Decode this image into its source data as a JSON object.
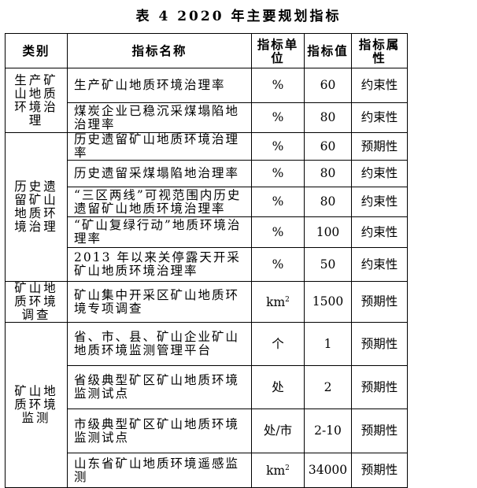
{
  "title": "表 4   2020 年主要规划指标",
  "headers": [
    "类别",
    "指标名称",
    "指标单位",
    "指标值",
    "指标属性"
  ],
  "groups": [
    {
      "category": "生产矿山地质环境治理",
      "rows": [
        {
          "name": "生产矿山地质环境治理率",
          "unit": "%",
          "value": "60",
          "attr": "约束性"
        },
        {
          "name": "煤炭企业已稳沉采煤塌陷地治理率",
          "unit": "%",
          "value": "80",
          "attr": "约束性"
        }
      ]
    },
    {
      "category": "历史遗留矿山地质环境治理",
      "rows": [
        {
          "name": "历史遗留矿山地质环境治理率",
          "unit": "%",
          "value": "60",
          "attr": "预期性"
        },
        {
          "name": "历史遗留采煤塌陷地治理率",
          "unit": "%",
          "value": "80",
          "attr": "约束性"
        },
        {
          "name": "“三区两线”可视范围内历史遗留矿山地质环境治理率",
          "unit": "%",
          "value": "80",
          "attr": "约束性"
        },
        {
          "name": "“矿山复绿行动”地质环境治理率",
          "unit": "%",
          "value": "100",
          "attr": "约束性"
        },
        {
          "name": "2013 年以来关停露天开采矿山地质环境治理率",
          "unit": "%",
          "value": "50",
          "attr": "约束性"
        }
      ]
    },
    {
      "category": "矿山地质环境调查",
      "rows": [
        {
          "name": "矿山集中开采区矿山地质环境专项调查",
          "unit": "km",
          "unit_sup": "2",
          "value": "1500",
          "attr": "预期性"
        }
      ]
    },
    {
      "category": "矿山地质环境监测",
      "rows": [
        {
          "name": "省、市、县、矿山企业矿山地质环境监测管理平台",
          "unit": "个",
          "value": "1",
          "attr": "预期性"
        },
        {
          "name": "省级典型矿区矿山地质环境监测试点",
          "unit": "处",
          "value": "2",
          "attr": "预期性"
        },
        {
          "name": "市级典型矿区矿山地质环境监测试点",
          "unit": "处/市",
          "value": "2-10",
          "attr": "预期性"
        },
        {
          "name": "山东省矿山地质环境遥感监测",
          "unit": "km",
          "unit_sup": "2",
          "value": "34000",
          "attr": "预期性"
        }
      ]
    }
  ]
}
